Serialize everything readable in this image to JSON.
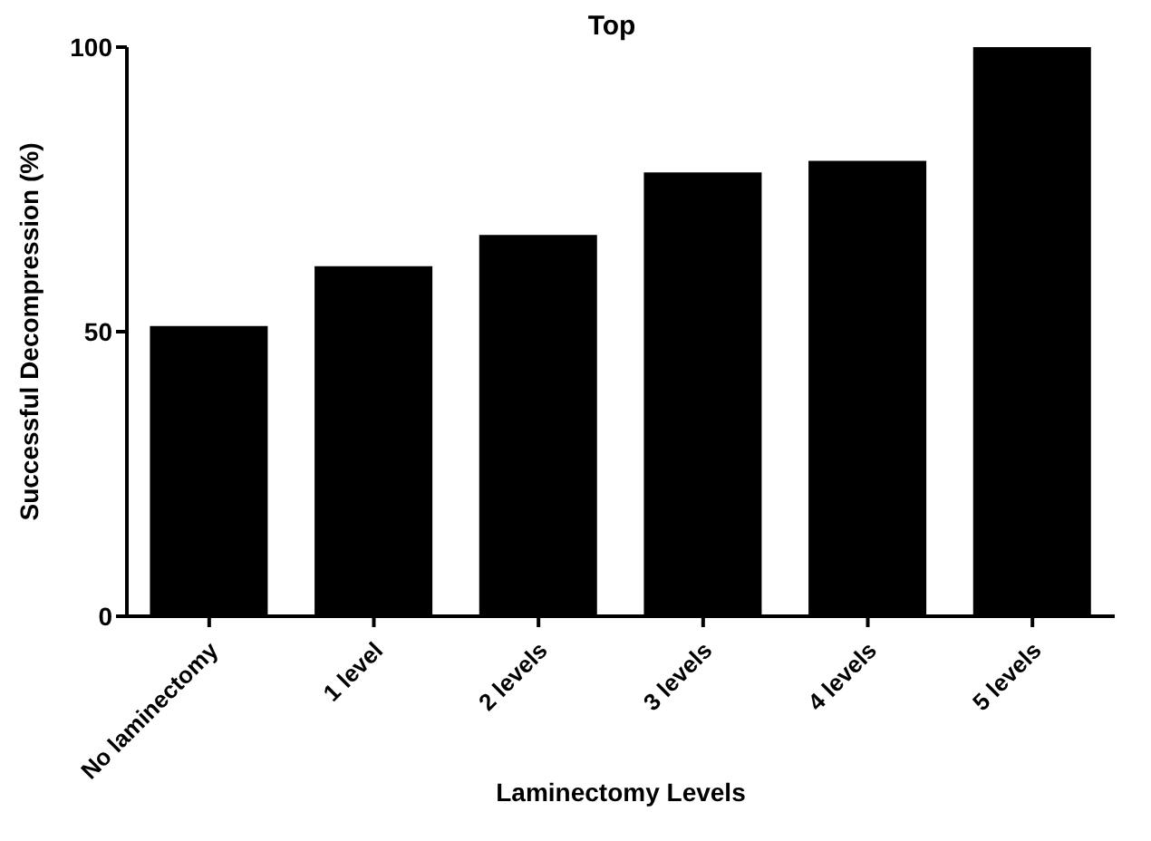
{
  "chart_data": {
    "type": "bar",
    "title": "Top",
    "xlabel": "Laminectomy Levels",
    "ylabel": "Successful Decompression (%)",
    "categories": [
      "No laminectomy",
      "1 level",
      "2 levels",
      "3 levels",
      "4 levels",
      "5 levels"
    ],
    "values": [
      51,
      61.5,
      67,
      78,
      80,
      100
    ],
    "color": "#000000",
    "ylim": [
      0,
      100
    ],
    "yticks": [
      0,
      50,
      100
    ],
    "grid": false
  }
}
